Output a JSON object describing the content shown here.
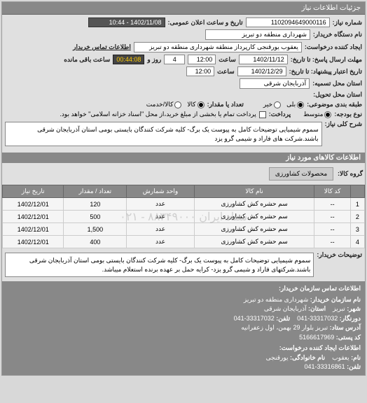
{
  "header": "جزئیات اطلاعات نیاز",
  "req_number_label": "شماره نیاز:",
  "req_number": "1102094649000116",
  "announce_label": "تاریخ و ساعت اعلان عمومی:",
  "announce_value": "1402/11/08 - 10:44",
  "buyer_name_label": "نام دستگاه خریدار:",
  "buyer_name": "شهرداری منطقه دو تبریز",
  "creator_label": "ایجاد کننده درخواست:",
  "creator": "یعقوب یورقنجی کارپرداز منطقه شهرداری منطقه دو تبریز",
  "buyer_contact_label": "اطلاعات تماس خریدار",
  "deadline_from_label": "مهلت ارسال پاسخ: تا تاریخ:",
  "deadline_from_date": "1402/11/12",
  "time_label": "ساعت",
  "deadline_from_time": "12:00",
  "remaining_days": "4",
  "days_label": "روز و",
  "remaining_time": "00:44:08",
  "remaining_label": "ساعت باقی مانده",
  "validity_label": "تاریخ اعتبار پیشنهاد: تا تاریخ:",
  "validity_date": "1402/12/29",
  "validity_time": "12:00",
  "location_label": "استان محل تسمیه:",
  "location": "آذربایجان شرقی",
  "delivery_label": "استان محل تحویل:",
  "priority_label": "طبقه بندی موضوعی:",
  "priority_options": [
    "بلی",
    "خیر"
  ],
  "qty_type_label": "تعداد یا مقدار:",
  "qty_options": [
    "کالا",
    "کالا/خدمت"
  ],
  "budget_label": "نوع بودجه:",
  "budget_options": [
    "متوسط"
  ],
  "payment_label": "پرداخت:",
  "payment_text": "پرداخت تمام یا بخشی از مبلغ خرید،از محل \"اسناد خزانه اسلامی\" خواهد بود.",
  "desc_label": "شرح کلی نیاز:",
  "desc_text": "سموم شیمیایی توضیحات کامل به پیوست یک برگ- کلیه شرکت کنندگان بایستی بومی استان آذربایجان شرقی باشند.شرکت های فاراد و شیمی گرو یزد",
  "items_section": "اطلاعات کالاهای مورد نیاز",
  "category_label": "گروه کالا:",
  "category": "محصولات کشاورزی",
  "table": {
    "headers": [
      "",
      "کد کالا",
      "نام کالا",
      "واحد شمارش",
      "تعداد / مقدار",
      "تاریخ نیاز"
    ],
    "rows": [
      [
        "1",
        "--",
        "سم حشره کش کشاورزی",
        "عدد",
        "120",
        "1402/12/01"
      ],
      [
        "2",
        "--",
        "سم حشره کش کشاورزی",
        "عدد",
        "500",
        "1402/12/01"
      ],
      [
        "3",
        "--",
        "سم حشره کش کشاورزی",
        "عدد",
        "1,500",
        "1402/12/01"
      ],
      [
        "4",
        "--",
        "سم حشره کش کشاورزی",
        "عدد",
        "400",
        "1402/12/01"
      ]
    ]
  },
  "watermark": "ستاد ایران ۸۸۳۴۹۰۰۰ - ۰۲۱",
  "buyer_desc_label": "توضیحات خریدار:",
  "buyer_desc": "سموم شیمیایی توضیحات کامل به پیوست یک برگ- کلیه شرکت کنندگان بایستی بومی استان آذربایجان شرقی باشند.شرکتهای فاراد و شیمی گرو یزد- کرایه حمل بر عهده برنده استعلام میباشد.",
  "footer": {
    "title": "اطلاعات تماس سازمان خریدار:",
    "org_label": "نام سازمان خریدار:",
    "org": "شهرداری منطقه دو تبریز",
    "city_label": "شهر:",
    "city": "تبریز",
    "province_label": "استان:",
    "province": "آذربایجان شرقی",
    "fax_label": "دورنگار:",
    "fax": "33317032-041",
    "phone_label": "تلفن:",
    "phone": "33317032-041",
    "address_label": "آدرس ستاد:",
    "address": "تبریز بلوار 29 بهمن، اول زعفرانیه",
    "postal_label": "کد پستی:",
    "postal": "5166617969",
    "req_creator_title": "اطلاعات ایجاد کننده درخواست:",
    "name_label": "نام:",
    "name": "یعقوب",
    "lname_label": "نام خانوادگی:",
    "lname": "یورقنجی",
    "tel_label": "تلفن:",
    "tel": "33316861-041"
  }
}
